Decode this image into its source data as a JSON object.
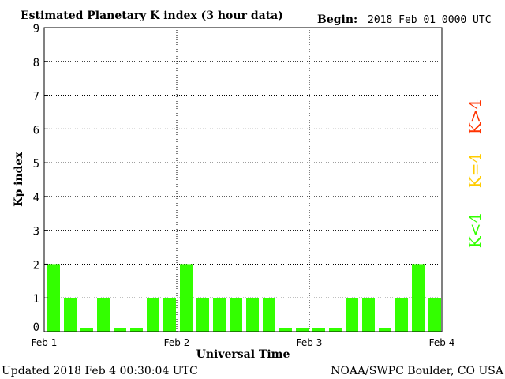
{
  "header": {
    "title": "Estimated Planetary K index (3 hour data)",
    "begin_label": "Begin:",
    "begin_value": "2018 Feb 01 0000 UTC"
  },
  "footer": {
    "updated": "Updated 2018 Feb  4 00:30:04 UTC",
    "source": "NOAA/SWPC Boulder, CO USA"
  },
  "legend": [
    {
      "text": "K>4",
      "color": "#ff3300"
    },
    {
      "text": "K=4",
      "color": "#ffcc00"
    },
    {
      "text": "K<4",
      "color": "#33ff00"
    }
  ],
  "chart_data": {
    "type": "bar",
    "title": "Estimated Planetary K index (3 hour data)",
    "xlabel": "Universal Time",
    "ylabel": "Kp index",
    "ylim": [
      0,
      9
    ],
    "yticks": [
      "0",
      "1",
      "2",
      "3",
      "4",
      "5",
      "6",
      "7",
      "8",
      "9"
    ],
    "xticks": [
      "Feb 1",
      "Feb 2",
      "Feb 3",
      "Feb 4"
    ],
    "grid": true,
    "bar_color": "#33ff00",
    "values": [
      2,
      1,
      0,
      1,
      0,
      0,
      1,
      1,
      2,
      1,
      1,
      1,
      1,
      1,
      0,
      0,
      0,
      0,
      1,
      1,
      0,
      1,
      2,
      1
    ]
  }
}
